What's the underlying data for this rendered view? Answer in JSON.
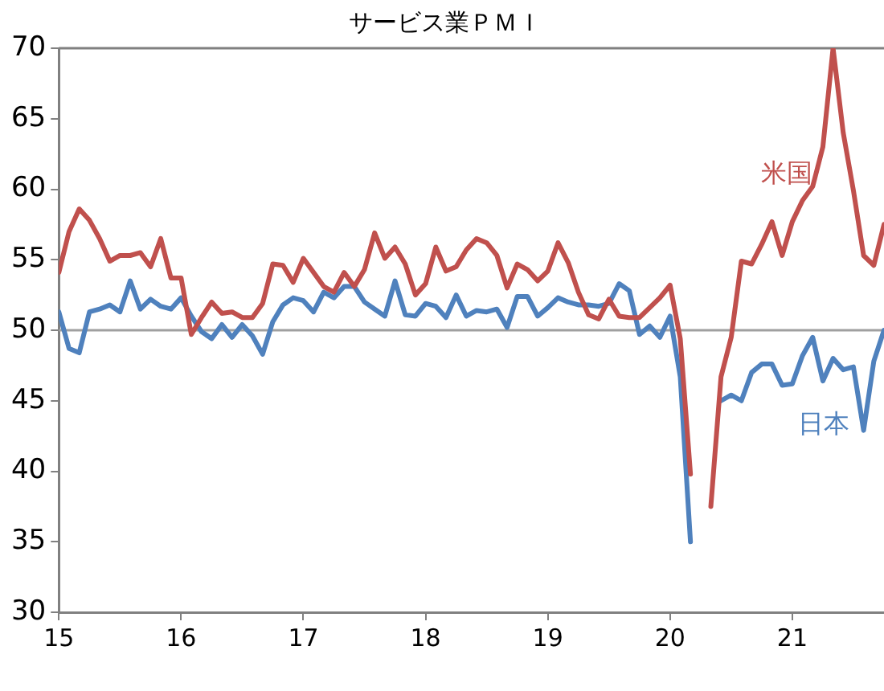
{
  "chart_data": {
    "type": "line",
    "title": "サービス業ＰＭＩ",
    "x": [
      "2015-01",
      "2015-02",
      "2015-03",
      "2015-04",
      "2015-05",
      "2015-06",
      "2015-07",
      "2015-08",
      "2015-09",
      "2015-10",
      "2015-11",
      "2015-12",
      "2016-01",
      "2016-02",
      "2016-03",
      "2016-04",
      "2016-05",
      "2016-06",
      "2016-07",
      "2016-08",
      "2016-09",
      "2016-10",
      "2016-11",
      "2016-12",
      "2017-01",
      "2017-02",
      "2017-03",
      "2017-04",
      "2017-05",
      "2017-06",
      "2017-07",
      "2017-08",
      "2017-09",
      "2017-10",
      "2017-11",
      "2017-12",
      "2018-01",
      "2018-02",
      "2018-03",
      "2018-04",
      "2018-05",
      "2018-06",
      "2018-07",
      "2018-08",
      "2018-09",
      "2018-10",
      "2018-11",
      "2018-12",
      "2019-01",
      "2019-02",
      "2019-03",
      "2019-04",
      "2019-05",
      "2019-06",
      "2019-07",
      "2019-08",
      "2019-09",
      "2019-10",
      "2019-11",
      "2019-12",
      "2020-01",
      "2020-02",
      "2020-03",
      "2020-04",
      "2020-05",
      "2020-06",
      "2020-07",
      "2020-08",
      "2020-09",
      "2020-10",
      "2020-11",
      "2020-12",
      "2021-01",
      "2021-02",
      "2021-03",
      "2021-04",
      "2021-05",
      "2021-06",
      "2021-07",
      "2021-08",
      "2021-09",
      "2021-10"
    ],
    "series": [
      {
        "name": "米国",
        "color": "#c0504d",
        "values": [
          54.1,
          57.0,
          58.6,
          57.8,
          56.5,
          54.9,
          55.3,
          55.3,
          55.5,
          54.5,
          56.5,
          53.7,
          53.7,
          49.7,
          50.9,
          52.0,
          51.2,
          51.3,
          50.9,
          50.9,
          51.9,
          54.7,
          54.6,
          53.4,
          55.1,
          54.1,
          53.1,
          52.7,
          54.1,
          53.1,
          54.3,
          56.9,
          55.1,
          55.9,
          54.7,
          52.5,
          53.3,
          55.9,
          54.2,
          54.5,
          55.7,
          56.5,
          56.2,
          55.3,
          53.0,
          54.7,
          54.3,
          53.5,
          54.2,
          56.2,
          54.8,
          52.7,
          51.1,
          50.8,
          52.2,
          51.0,
          50.9,
          50.9,
          51.6,
          52.3,
          53.2,
          49.4,
          39.8,
          null,
          37.5,
          46.7,
          49.5,
          54.9,
          54.7,
          56.1,
          57.7,
          55.3,
          57.7,
          59.2,
          60.2,
          63.0,
          70.0,
          64.0,
          59.9,
          55.3,
          54.6,
          57.5
        ]
      },
      {
        "name": "日本",
        "color": "#4f81bd",
        "values": [
          51.3,
          48.7,
          48.4,
          51.3,
          51.5,
          51.8,
          51.3,
          53.5,
          51.5,
          52.2,
          51.7,
          51.5,
          52.3,
          51.0,
          49.9,
          49.4,
          50.4,
          49.5,
          50.4,
          49.6,
          48.3,
          50.6,
          51.8,
          52.3,
          52.1,
          51.3,
          52.7,
          52.3,
          53.1,
          53.1,
          52.0,
          51.5,
          51.0,
          53.5,
          51.1,
          51.0,
          51.9,
          51.7,
          50.9,
          52.5,
          51.0,
          51.4,
          51.3,
          51.5,
          50.2,
          52.4,
          52.4,
          51.0,
          51.6,
          52.3,
          52.0,
          51.8,
          51.8,
          51.7,
          51.9,
          53.3,
          52.8,
          49.7,
          50.3,
          49.5,
          51.0,
          46.7,
          35.0,
          null,
          null,
          45.0,
          45.4,
          45.0,
          47.0,
          47.6,
          47.6,
          46.1,
          46.2,
          48.2,
          49.5,
          46.4,
          48.0,
          47.2,
          47.4,
          42.9,
          47.8,
          50.0
        ]
      }
    ],
    "xlim": [
      "2015-01",
      "2021-10"
    ],
    "xticks": [
      {
        "value": "2015-01",
        "label": "15"
      },
      {
        "value": "2016-01",
        "label": "16"
      },
      {
        "value": "2017-01",
        "label": "17"
      },
      {
        "value": "2018-01",
        "label": "18"
      },
      {
        "value": "2019-01",
        "label": "19"
      },
      {
        "value": "2020-01",
        "label": "20"
      },
      {
        "value": "2021-01",
        "label": "21"
      }
    ],
    "ylim": [
      30,
      70
    ],
    "yticks": [
      30,
      35,
      40,
      45,
      50,
      55,
      60,
      65,
      70
    ],
    "ref_lines": [
      {
        "axis": "y",
        "value": 50,
        "color": "#a0a0a0"
      }
    ],
    "grid": false,
    "legend": false,
    "marker": "none",
    "line_style": "solid"
  }
}
